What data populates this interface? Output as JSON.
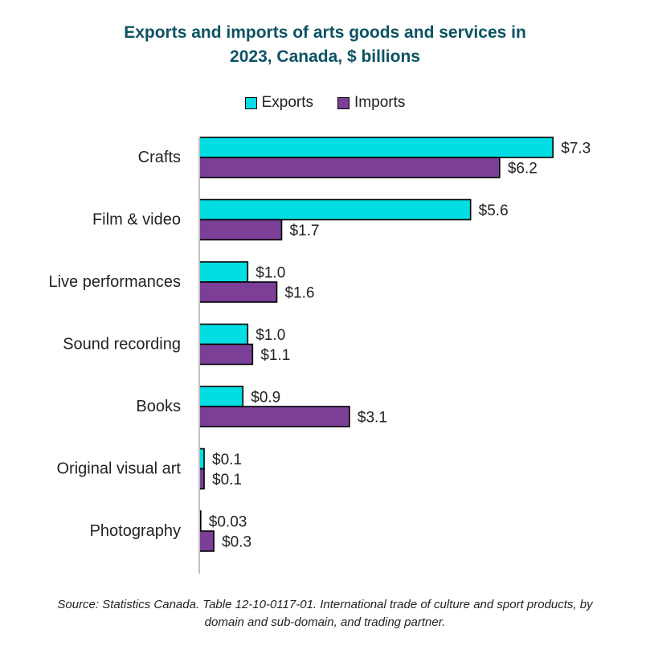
{
  "title_line1": "Exports and imports of arts goods and services in",
  "title_line2": "2023, Canada, $ billions",
  "source_line1": "Source: Statistics Canada. Table 12-10-0117-01. International trade of culture and sport products, by",
  "source_line2": "domain and sub-domain, and trading partner.",
  "colors": {
    "exports": "#00dde3",
    "imports": "#7b3f98",
    "title": "#0c5264"
  },
  "chart_data": {
    "type": "bar",
    "orientation": "horizontal",
    "title": "Exports and imports of arts goods and services in 2023, Canada, $ billions",
    "legend_position": "top",
    "grid": false,
    "categories": [
      "Crafts",
      "Film & video",
      "Live performances",
      "Sound recording",
      "Books",
      "Original visual art",
      "Photography"
    ],
    "series": [
      {
        "name": "Exports",
        "values": [
          7.3,
          5.6,
          1.0,
          1.0,
          0.9,
          0.1,
          0.03
        ],
        "labels": [
          "$7.3",
          "$5.6",
          "$1.0",
          "$1.0",
          "$0.9",
          "$0.1",
          "$0.03"
        ]
      },
      {
        "name": "Imports",
        "values": [
          6.2,
          1.7,
          1.6,
          1.1,
          3.1,
          0.1,
          0.3
        ],
        "labels": [
          "$6.2",
          "$1.7",
          "$1.6",
          "$1.1",
          "$3.1",
          "$0.1",
          "$0.3"
        ]
      }
    ],
    "xlim": [
      0,
      8
    ]
  }
}
